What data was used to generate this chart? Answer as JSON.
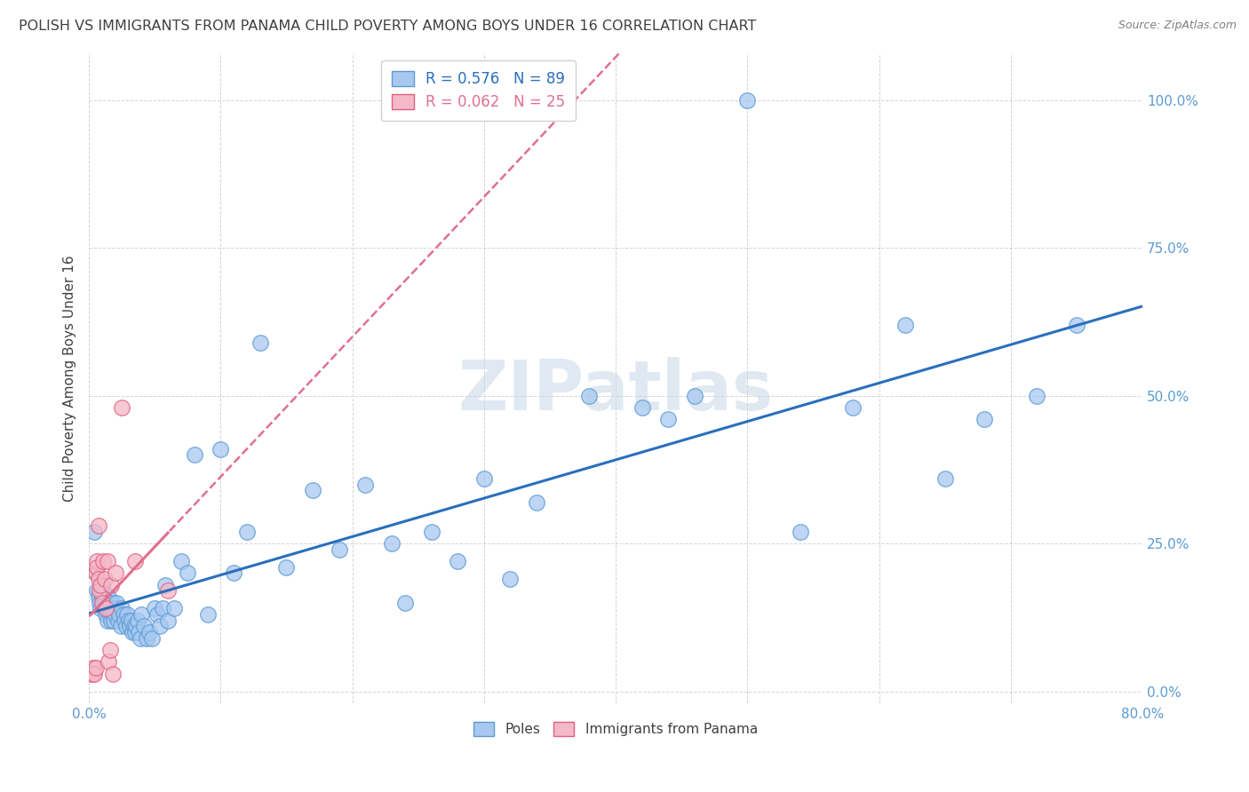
{
  "title": "POLISH VS IMMIGRANTS FROM PANAMA CHILD POVERTY AMONG BOYS UNDER 16 CORRELATION CHART",
  "source": "Source: ZipAtlas.com",
  "ylabel": "Child Poverty Among Boys Under 16",
  "xlim": [
    0.0,
    0.8
  ],
  "ylim": [
    -0.02,
    1.08
  ],
  "ytick_labels": [
    "0.0%",
    "25.0%",
    "50.0%",
    "75.0%",
    "100.0%"
  ],
  "ytick_values": [
    0.0,
    0.25,
    0.5,
    0.75,
    1.0
  ],
  "xtick_labels": [
    "0.0%",
    "",
    "",
    "",
    "",
    "",
    "",
    "",
    "80.0%"
  ],
  "xtick_values": [
    0.0,
    0.1,
    0.2,
    0.3,
    0.4,
    0.5,
    0.6,
    0.7,
    0.8
  ],
  "poles_R": "0.576",
  "poles_N": "89",
  "panama_R": "0.062",
  "panama_N": "25",
  "poles_color": "#a8c8f0",
  "poles_edge_color": "#5b9bd5",
  "panama_color": "#f5b8c8",
  "panama_edge_color": "#e06080",
  "trend_poles_color": "#2a6fbd",
  "trend_panama_color": "#e07090",
  "watermark_color": "#c8d8e8",
  "title_color": "#404040",
  "axis_color": "#5b9bd5",
  "grid_color": "#d0d0d0",
  "poles_scatter_x": [
    0.004,
    0.005,
    0.006,
    0.007,
    0.008,
    0.009,
    0.01,
    0.01,
    0.011,
    0.011,
    0.012,
    0.012,
    0.013,
    0.013,
    0.014,
    0.014,
    0.015,
    0.015,
    0.016,
    0.016,
    0.017,
    0.017,
    0.018,
    0.018,
    0.019,
    0.02,
    0.02,
    0.021,
    0.022,
    0.023,
    0.024,
    0.025,
    0.026,
    0.027,
    0.028,
    0.029,
    0.03,
    0.031,
    0.032,
    0.033,
    0.034,
    0.035,
    0.036,
    0.037,
    0.038,
    0.039,
    0.04,
    0.042,
    0.044,
    0.046,
    0.048,
    0.05,
    0.052,
    0.054,
    0.056,
    0.058,
    0.06,
    0.065,
    0.07,
    0.075,
    0.08,
    0.09,
    0.1,
    0.11,
    0.12,
    0.13,
    0.15,
    0.17,
    0.19,
    0.21,
    0.23,
    0.26,
    0.3,
    0.34,
    0.38,
    0.42,
    0.46,
    0.5,
    0.54,
    0.58,
    0.62,
    0.65,
    0.68,
    0.72,
    0.75,
    0.24,
    0.28,
    0.32,
    0.44
  ],
  "poles_scatter_y": [
    0.27,
    0.2,
    0.17,
    0.16,
    0.15,
    0.14,
    0.18,
    0.16,
    0.15,
    0.17,
    0.15,
    0.14,
    0.15,
    0.13,
    0.14,
    0.12,
    0.16,
    0.14,
    0.15,
    0.13,
    0.14,
    0.12,
    0.15,
    0.13,
    0.12,
    0.14,
    0.13,
    0.15,
    0.12,
    0.13,
    0.11,
    0.14,
    0.13,
    0.12,
    0.11,
    0.13,
    0.12,
    0.11,
    0.12,
    0.1,
    0.11,
    0.1,
    0.11,
    0.12,
    0.1,
    0.09,
    0.13,
    0.11,
    0.09,
    0.1,
    0.09,
    0.14,
    0.13,
    0.11,
    0.14,
    0.18,
    0.12,
    0.14,
    0.22,
    0.2,
    0.4,
    0.13,
    0.41,
    0.2,
    0.27,
    0.59,
    0.21,
    0.34,
    0.24,
    0.35,
    0.25,
    0.27,
    0.36,
    0.32,
    0.5,
    0.48,
    0.5,
    1.0,
    0.27,
    0.48,
    0.62,
    0.36,
    0.46,
    0.5,
    0.62,
    0.15,
    0.22,
    0.19,
    0.46
  ],
  "panama_scatter_x": [
    0.002,
    0.003,
    0.003,
    0.004,
    0.005,
    0.005,
    0.006,
    0.006,
    0.007,
    0.007,
    0.008,
    0.009,
    0.01,
    0.011,
    0.012,
    0.013,
    0.014,
    0.015,
    0.016,
    0.017,
    0.018,
    0.02,
    0.025,
    0.035,
    0.06
  ],
  "panama_scatter_y": [
    0.03,
    0.04,
    0.03,
    0.03,
    0.2,
    0.04,
    0.22,
    0.21,
    0.28,
    0.19,
    0.17,
    0.18,
    0.15,
    0.22,
    0.19,
    0.14,
    0.22,
    0.05,
    0.07,
    0.18,
    0.03,
    0.2,
    0.48,
    0.22,
    0.17
  ]
}
